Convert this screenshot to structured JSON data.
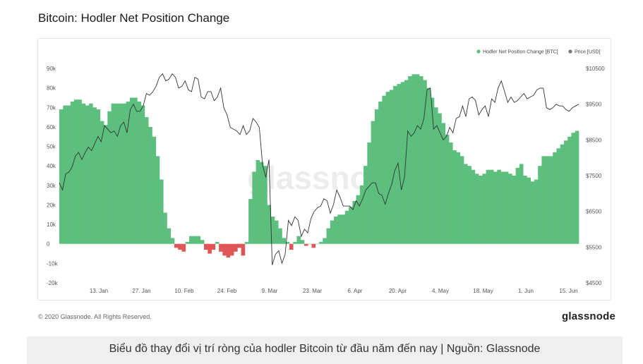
{
  "page": {
    "title": "Bitcoin: Hodler Net Position Change",
    "copyright": "© 2020 Glassnode. All Rights Reserved.",
    "brand": "glassnode",
    "caption": "Biểu đồ thay đổi vị trí ròng của hodler Bitcoin từ đầu năm đến nay | Nguồn: Glassnode",
    "watermark": "glassnode"
  },
  "colors": {
    "positive": "#5cbf7e",
    "negative": "#e05656",
    "price_line": "#333333"
  },
  "chart_data": {
    "type": "bar",
    "title": "Bitcoin: Hodler Net Position Change",
    "legend": {
      "placement": "top-right",
      "entries": [
        "Hodler Net Position Change [BTC]",
        "Price [USD]"
      ]
    },
    "x_ticks": [
      "13. Jan",
      "27. Jan",
      "10. Feb",
      "24. Feb",
      "9. Mar",
      "23. Mar",
      "6. Apr",
      "20. Apr",
      "4. May",
      "18. May",
      "1. Jun",
      "15. Jun"
    ],
    "y_left": {
      "ticks": [
        "90k",
        "80k",
        "70k",
        "60k",
        "50k",
        "40k",
        "30k",
        "20k",
        "10k",
        "0",
        "-10k",
        "-20k"
      ],
      "range": [
        -20000,
        90000
      ]
    },
    "y_right": {
      "ticks": [
        "$10500",
        "$9500",
        "$8500",
        "$7500",
        "$6500",
        "$5500",
        "$4500"
      ],
      "range": [
        4500,
        10500
      ]
    },
    "grid": false,
    "series": [
      {
        "name": "Hodler Net Position Change [BTC]",
        "unit": "BTC",
        "values": [
          69000,
          71000,
          71000,
          73000,
          74000,
          74000,
          72000,
          71000,
          72000,
          70000,
          69000,
          63000,
          61000,
          68000,
          72000,
          72000,
          72000,
          72000,
          73000,
          75000,
          75000,
          73000,
          71000,
          65000,
          60000,
          55000,
          45000,
          33000,
          16000,
          8000,
          3000,
          -2000,
          -3000,
          -4000,
          1000,
          4000,
          4000,
          4000,
          2000,
          -3000,
          -5000,
          -3000,
          1000,
          -4000,
          -6000,
          -7000,
          -6000,
          -4000,
          -2000,
          -6000,
          1000,
          23000,
          37000,
          43000,
          42000,
          40000,
          20000,
          14000,
          12000,
          8000,
          3000,
          1000,
          -3000,
          1000,
          4000,
          2000,
          -1000,
          0,
          -2000,
          0,
          1000,
          3000,
          8000,
          12000,
          14000,
          15000,
          15000,
          17000,
          19000,
          22000,
          25000,
          30000,
          40000,
          52000,
          63000,
          69000,
          73000,
          76000,
          78000,
          79000,
          81000,
          82000,
          83000,
          84000,
          86000,
          87000,
          87000,
          86000,
          84000,
          80000,
          75000,
          70000,
          67000,
          62000,
          56000,
          52000,
          48000,
          47000,
          45000,
          41000,
          40000,
          38000,
          36000,
          35000,
          36000,
          38000,
          38000,
          37000,
          38000,
          37000,
          37000,
          36000,
          35000,
          39000,
          41000,
          35000,
          34000,
          32000,
          33000,
          40000,
          45000,
          45000,
          45000,
          47000,
          49000,
          51000,
          53000,
          55000,
          57000,
          58000
        ]
      },
      {
        "name": "Price [USD]",
        "unit": "USD",
        "values": [
          7300,
          7100,
          7550,
          7600,
          7750,
          8050,
          8150,
          7950,
          8150,
          8300,
          8200,
          8400,
          8600,
          8450,
          8900,
          8800,
          8700,
          8750,
          8600,
          8900,
          9000,
          8700,
          9350,
          9500,
          9300,
          9300,
          9450,
          9800,
          9750,
          9850,
          10000,
          10250,
          10350,
          10150,
          10200,
          10350,
          10250,
          9950,
          10000,
          10150,
          9900,
          9850,
          10250,
          10200,
          9700,
          9650,
          9850,
          9850,
          9600,
          9700,
          9950,
          9400,
          9200,
          8850,
          8800,
          8750,
          8650,
          8900,
          8650,
          8750,
          9100,
          9000,
          8850,
          7800,
          7450,
          7950,
          5000,
          5300,
          5400,
          5050,
          5300,
          6250,
          6100,
          6350,
          6250,
          5800,
          6000,
          5900,
          6300,
          6500,
          6600,
          6650,
          6850,
          6800,
          6450,
          6700,
          7100,
          6900,
          6650,
          6650,
          6650,
          6550,
          6800,
          6650,
          6850,
          7100,
          7200,
          7300,
          7300,
          7000,
          6950,
          6700,
          7000,
          7250,
          7650,
          7850,
          7100,
          7450,
          8750,
          8600,
          8700,
          8900,
          8800,
          9100,
          9900,
          9950,
          8800,
          8900,
          8700,
          8500,
          8600,
          8850,
          8700,
          9100,
          9150,
          9450,
          9150,
          9650,
          9700,
          9600,
          9200,
          9350,
          9450,
          9150,
          9650,
          9550,
          9950,
          10150,
          9850,
          9550,
          9700,
          9550,
          9600,
          9700,
          9800,
          9650,
          9700,
          9750,
          9900,
          9950,
          9950,
          9400,
          9350,
          9400,
          9500,
          9450,
          9450,
          9350,
          9300,
          9400,
          9450,
          9500
        ]
      }
    ]
  }
}
